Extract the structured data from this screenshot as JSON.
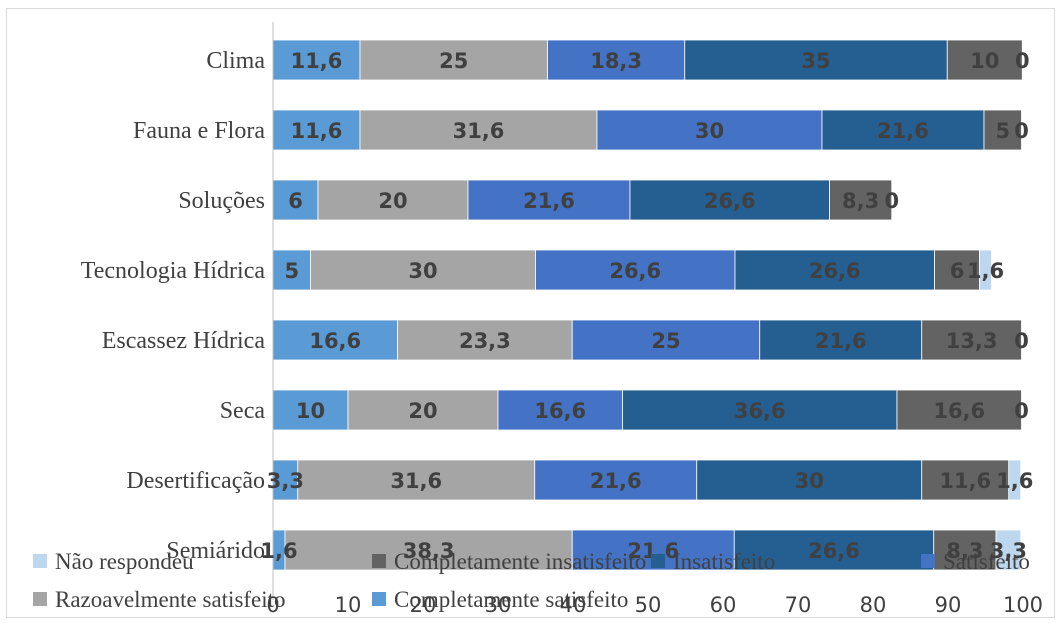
{
  "chart_data": {
    "type": "bar",
    "orientation": "horizontal",
    "stacked": true,
    "categories": [
      "Clima",
      "Fauna e Flora",
      "Soluções",
      "Tecnologia Hídrica",
      "Escassez Hídrica",
      "Seca",
      "Desertificação",
      "Semiárido"
    ],
    "series": [
      {
        "name": "Completamente satisfeito",
        "color": "#5b9bd5",
        "values": [
          11.6,
          11.6,
          6,
          5,
          16.6,
          10,
          3.3,
          1.6
        ],
        "labels": [
          "11,6",
          "11,6",
          "6",
          "5",
          "16,6",
          "10",
          "3,3",
          "1,6"
        ]
      },
      {
        "name": "Razoavelmente satisfeito",
        "color": "#a5a5a5",
        "values": [
          25,
          31.6,
          20,
          30,
          23.3,
          20,
          31.6,
          38.3
        ],
        "labels": [
          "25",
          "31,6",
          "20",
          "30",
          "23,3",
          "20",
          "31,6",
          "38,3"
        ]
      },
      {
        "name": "Satisfeito",
        "color": "#4472c4",
        "values": [
          18.3,
          30,
          21.6,
          26.6,
          25,
          16.6,
          21.6,
          21.6
        ],
        "labels": [
          "18,3",
          "30",
          "21,6",
          "26,6",
          "25",
          "16,6",
          "21,6",
          "21,6"
        ]
      },
      {
        "name": "Insatisfeito",
        "color": "#255e91",
        "values": [
          35,
          21.6,
          26.6,
          26.6,
          21.6,
          36.6,
          30,
          26.6
        ],
        "labels": [
          "35",
          "21,6",
          "26,6",
          "26,6",
          "21,6",
          "36,6",
          "30",
          "26,6"
        ]
      },
      {
        "name": "Completamente insatisfeito",
        "color": "#636363",
        "values": [
          10,
          5,
          8.3,
          6,
          13.3,
          16.6,
          11.6,
          8.3
        ],
        "labels": [
          "10",
          "5",
          "8,3",
          "6",
          "13,3",
          "16,6",
          "11,6",
          "8,3"
        ]
      },
      {
        "name": "Não respondeu",
        "color": "#bdd7ee",
        "values": [
          0,
          0,
          0,
          1.6,
          0,
          0,
          1.6,
          3.3
        ],
        "labels": [
          "0",
          "0",
          "0",
          "1,6",
          "0",
          "0",
          "1,6",
          "3,3"
        ]
      }
    ],
    "xlim": [
      0,
      100
    ],
    "xticks": [
      0,
      10,
      20,
      30,
      40,
      50,
      60,
      70,
      80,
      90,
      100
    ],
    "legend": {
      "placement": "bottom",
      "rows": [
        [
          "Não respondeu",
          "Completamente insatisfeito",
          "Insatisfeito",
          "Satisfeito"
        ],
        [
          "Razoavelmente satisfeito",
          "Completamente satisfeito"
        ]
      ]
    },
    "grid": false
  }
}
